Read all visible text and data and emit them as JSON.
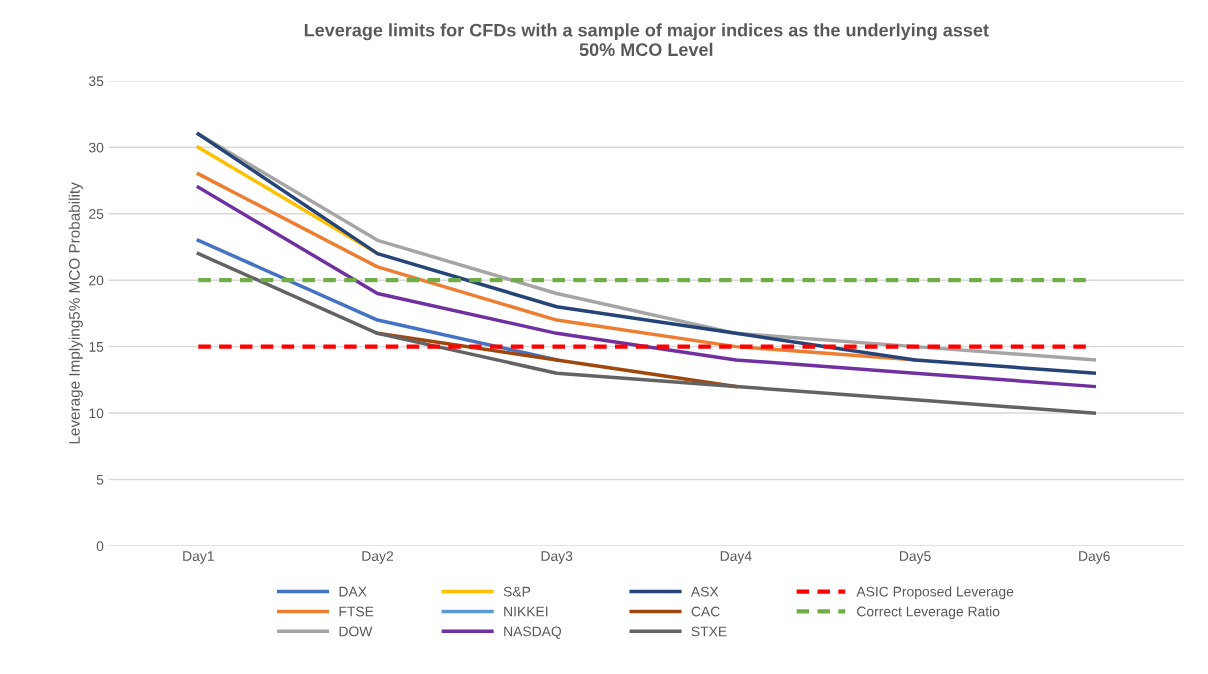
{
  "chart_data": {
    "type": "line",
    "title": "Leverage limits for CFDs with a sample of major indices as the underlying asset\n50% MCO Level",
    "ylabel": "Leverage Implying5% MCO Probability",
    "categories": [
      "Day1",
      "Day2",
      "Day3",
      "Day4",
      "Day5",
      "Day6"
    ],
    "series": [
      {
        "name": "DAX",
        "color": "#4472c4",
        "values": [
          23,
          17,
          14,
          null,
          null,
          null
        ]
      },
      {
        "name": "FTSE",
        "color": "#ed7d31",
        "values": [
          28,
          21,
          17,
          15,
          14,
          null
        ]
      },
      {
        "name": "DOW",
        "color": "#a5a5a5",
        "values": [
          31,
          23,
          19,
          16,
          15,
          14
        ]
      },
      {
        "name": "S&P",
        "color": "#ffc000",
        "values": [
          30,
          22,
          null,
          null,
          null,
          null
        ]
      },
      {
        "name": "NIKKEI",
        "color": "#5b9bd5",
        "values": [
          null,
          null,
          null,
          null,
          null,
          null
        ]
      },
      {
        "name": "NASDAQ",
        "color": "#7030a0",
        "values": [
          27,
          19,
          16,
          14,
          13,
          12
        ]
      },
      {
        "name": "ASX",
        "color": "#264478",
        "values": [
          31,
          22,
          18,
          16,
          14,
          13
        ]
      },
      {
        "name": "CAC",
        "color": "#9e480e",
        "values": [
          null,
          16,
          14,
          12,
          null,
          null
        ]
      },
      {
        "name": "STXE",
        "color": "#636363",
        "values": [
          22,
          16,
          13,
          12,
          11,
          10
        ]
      }
    ],
    "ref_lines": [
      {
        "axis": "y",
        "value": 15,
        "label": "ASIC Proposed Leverage",
        "color": "#ff0000",
        "line_style": "dashed"
      },
      {
        "axis": "y",
        "value": 20,
        "label": "Correct Leverage Ratio",
        "color": "#70ad47",
        "line_style": "dashed"
      }
    ],
    "ylim": [
      0,
      35
    ],
    "yticks": [
      0,
      5,
      10,
      15,
      20,
      25,
      30,
      35
    ],
    "grid": "y",
    "legend": "bottom",
    "marker": "none",
    "line_style": "solid"
  }
}
